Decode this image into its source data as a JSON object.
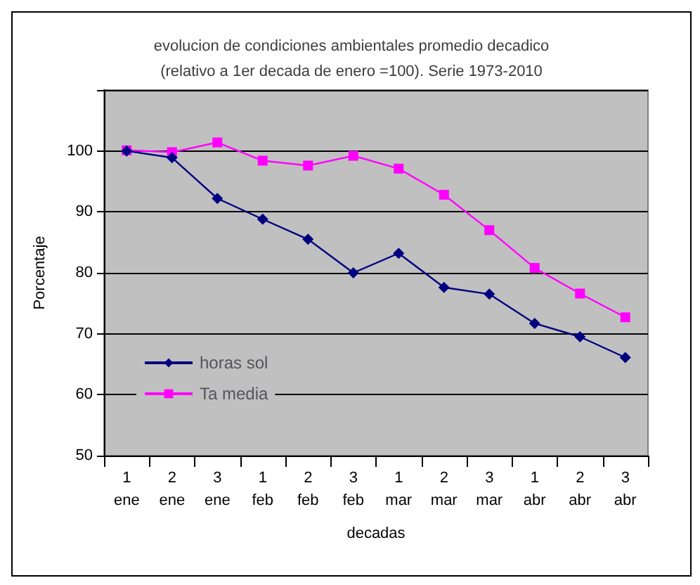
{
  "chart_data": {
    "type": "line",
    "title": "evolucion de condiciones ambientales promedio decadico\n(relativo a 1er decada de enero =100). Serie 1973-2010",
    "xlabel": "decadas",
    "ylabel": "Porcentaje",
    "categories": [
      "1\nene",
      "2\nene",
      "3\nene",
      "1\nfeb",
      "2\nfeb",
      "3\nfeb",
      "1\nmar",
      "2\nmar",
      "3\nmar",
      "1\nabr",
      "2\nabr",
      "3\nabr"
    ],
    "series": [
      {
        "name": "horas sol",
        "color": "#000080",
        "marker": "diamond",
        "values": [
          100,
          98.9,
          92.2,
          88.8,
          85.5,
          80,
          83.2,
          77.6,
          76.5,
          71.7,
          69.5,
          66.1
        ]
      },
      {
        "name": "Ta media",
        "color": "#ff00ff",
        "marker": "square",
        "values": [
          100.1,
          99.8,
          101.4,
          98.4,
          97.6,
          99.2,
          97.1,
          92.8,
          87,
          80.8,
          76.6,
          72.7
        ]
      }
    ],
    "ylim": [
      50,
      110
    ],
    "yticks": [
      50,
      60,
      70,
      80,
      90,
      100,
      {
        "value": 110,
        "label": null
      }
    ],
    "grid": "y",
    "legend": "bottom left"
  }
}
